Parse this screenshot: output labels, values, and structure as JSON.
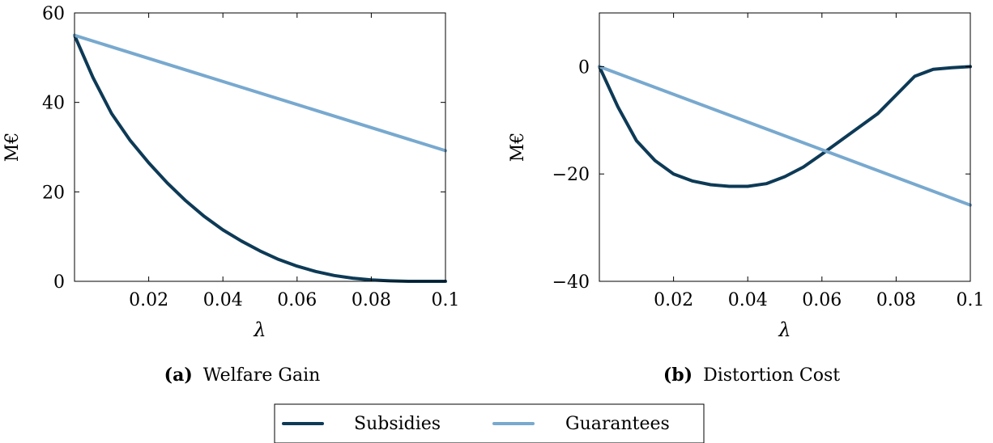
{
  "figure": {
    "legend": [
      {
        "name": "Subsidies",
        "color": "#0d3a56"
      },
      {
        "name": "Guarantees",
        "color": "#78a9cf"
      }
    ]
  },
  "chart_data": [
    {
      "type": "line",
      "caption_tag": "(a)",
      "caption": "Welfare Gain",
      "xlabel": "λ",
      "ylabel": "M€",
      "xlim": [
        0,
        0.1
      ],
      "ylim": [
        0,
        60
      ],
      "x_ticks": [
        0.02,
        0.04,
        0.06,
        0.08,
        0.1
      ],
      "x_tick_labels": [
        "0.02",
        "0.04",
        "0.06",
        "0.08",
        "0.1"
      ],
      "y_ticks": [
        0,
        20,
        40,
        60
      ],
      "y_tick_labels": [
        "0",
        "20",
        "40",
        "60"
      ],
      "grid": false,
      "series": [
        {
          "name": "Subsidies",
          "color": "#0d3a56",
          "x": [
            0,
            0.005,
            0.01,
            0.015,
            0.02,
            0.025,
            0.03,
            0.035,
            0.04,
            0.045,
            0.05,
            0.055,
            0.06,
            0.065,
            0.07,
            0.075,
            0.08,
            0.085,
            0.09,
            0.095,
            0.1
          ],
          "y": [
            55,
            45.5,
            37.5,
            31.5,
            26.5,
            22,
            18,
            14.5,
            11.5,
            9,
            6.8,
            4.9,
            3.4,
            2.2,
            1.3,
            0.7,
            0.3,
            0.1,
            0,
            0,
            0
          ]
        },
        {
          "name": "Guarantees",
          "color": "#78a9cf",
          "x": [
            0,
            0.1
          ],
          "y": [
            55,
            29.2
          ]
        }
      ]
    },
    {
      "type": "line",
      "caption_tag": "(b)",
      "caption": "Distortion Cost",
      "xlabel": "λ",
      "ylabel": "M€",
      "xlim": [
        0,
        0.1
      ],
      "ylim": [
        -40,
        10
      ],
      "x_ticks": [
        0.02,
        0.04,
        0.06,
        0.08,
        0.1
      ],
      "x_tick_labels": [
        "0.02",
        "0.04",
        "0.06",
        "0.08",
        "0.1"
      ],
      "y_ticks": [
        -40,
        -20,
        0
      ],
      "y_tick_labels": [
        "−40",
        "−20",
        "0"
      ],
      "grid": false,
      "series": [
        {
          "name": "Subsidies",
          "color": "#0d3a56",
          "x": [
            0,
            0.005,
            0.01,
            0.015,
            0.02,
            0.025,
            0.03,
            0.035,
            0.04,
            0.045,
            0.05,
            0.055,
            0.06,
            0.065,
            0.07,
            0.075,
            0.08,
            0.085,
            0.09,
            0.095,
            0.1
          ],
          "y": [
            0,
            -7.5,
            -13.8,
            -17.5,
            -20,
            -21.3,
            -22,
            -22.3,
            -22.3,
            -21.8,
            -20.5,
            -18.7,
            -16.3,
            -13.8,
            -11.3,
            -8.8,
            -5.3,
            -1.8,
            -0.5,
            -0.2,
            0
          ]
        },
        {
          "name": "Guarantees",
          "color": "#78a9cf",
          "x": [
            0,
            0.1
          ],
          "y": [
            0,
            -25.8
          ]
        }
      ]
    }
  ]
}
